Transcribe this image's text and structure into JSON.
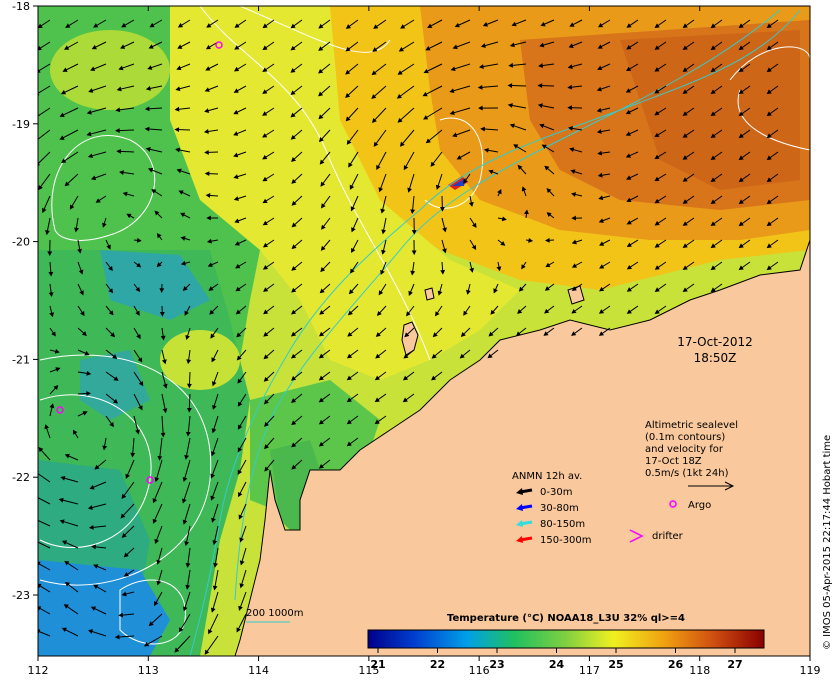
{
  "map": {
    "lon_ticks": [
      "112",
      "113",
      "114",
      "115",
      "116",
      "117",
      "118",
      "119"
    ],
    "lat_ticks": [
      "-18",
      "-19",
      "-20",
      "-21",
      "-22",
      "-23"
    ]
  },
  "timestamp": {
    "date": "17-Oct-2012",
    "time": "18:50Z"
  },
  "altimetry_note": {
    "lines": [
      "Altimetric sealevel",
      "(0.1m contours)",
      "and velocity for",
      "17-Oct 18Z",
      "0.5m/s (1kt 24h)"
    ]
  },
  "mooring_legend": {
    "title": "ANMN 12h av.",
    "items": [
      {
        "label": "0-30m",
        "color": "#000000"
      },
      {
        "label": "30-80m",
        "color": "#0000ff"
      },
      {
        "label": "80-150m",
        "color": "#33dddd"
      },
      {
        "label": "150-300m",
        "color": "#ff0000"
      }
    ]
  },
  "markers": {
    "argo_label": "Argo",
    "drifter_label": "drifter"
  },
  "bathymetry": {
    "label": "200  1000m"
  },
  "colorbar": {
    "title": "Temperature (°C) NOAA18_L3U 32% ql>=4",
    "ticks": [
      "21",
      "22",
      "23",
      "24",
      "25",
      "26",
      "27"
    ]
  },
  "copyright": "© IMOS 05-Apr-2015 22:17:44 Hobart time",
  "colors": {
    "land": "#f9c89c",
    "cold": "#1f8fd8",
    "mid": "#5cc64a",
    "warm": "#f0e227",
    "hot": "#e07810",
    "argo": "#ff00ff",
    "bathy": "#33cccc"
  }
}
